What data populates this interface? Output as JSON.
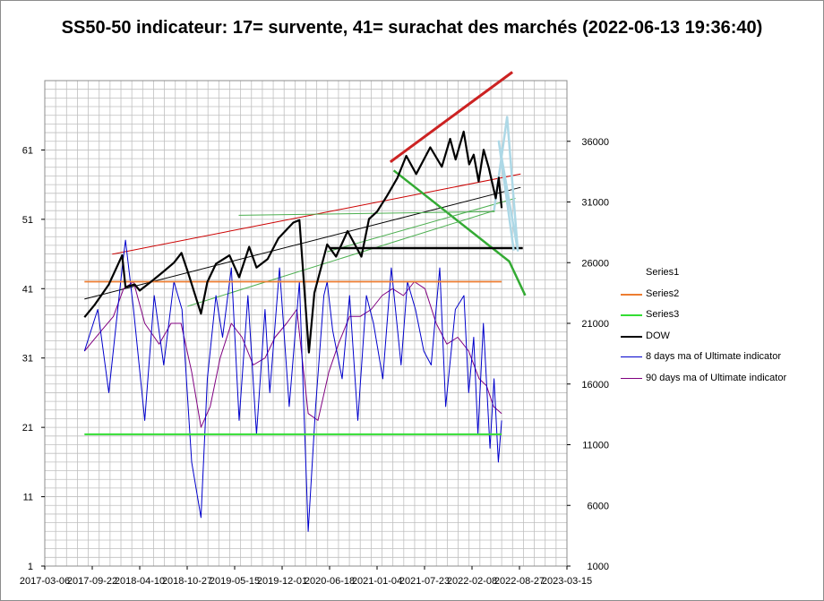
{
  "chart_data": {
    "type": "line",
    "title": "SS50-50 indicateur: 17= survente, 41= surachat des marchés (2022-06-13 19:36:40)",
    "x_ticks": [
      "2017-03-06",
      "2017-09-22",
      "2018-04-10",
      "2018-10-27",
      "2019-05-15",
      "2019-12-01",
      "2020-06-18",
      "2021-01-04",
      "2021-07-23",
      "2022-02-08",
      "2022-08-27",
      "2023-03-15"
    ],
    "y_left_ticks": [
      "1",
      "11",
      "21",
      "31",
      "41",
      "51",
      "61"
    ],
    "y_right_ticks": [
      "1000",
      "6000",
      "11000",
      "16000",
      "21000",
      "26000",
      "31000",
      "36000"
    ],
    "y_left_range": [
      1,
      71
    ],
    "y_right_range": [
      1000,
      41000
    ],
    "x_range": [
      "2017-03-06",
      "2023-03-15"
    ],
    "grid": true,
    "legend_position": "right",
    "series": [
      {
        "name": "Series1",
        "color": "#ffffff",
        "axis": "left",
        "x": [],
        "values": []
      },
      {
        "name": "Series2",
        "color": "#ed7d31",
        "axis": "left",
        "x": [
          "2017-08-20",
          "2022-06-13"
        ],
        "values": [
          42,
          42
        ]
      },
      {
        "name": "Series3",
        "color": "#33dd33",
        "axis": "left",
        "x": [
          "2017-08-20",
          "2022-06-13"
        ],
        "values": [
          20,
          20
        ]
      },
      {
        "name": "DOW",
        "color": "#000000",
        "axis": "right",
        "x": [
          "2017-08-20",
          "2017-10-01",
          "2017-12-01",
          "2018-01-26",
          "2018-02-09",
          "2018-03-20",
          "2018-04-10",
          "2018-06-01",
          "2018-07-15",
          "2018-09-01",
          "2018-10-03",
          "2018-11-01",
          "2018-12-24",
          "2019-01-20",
          "2019-02-25",
          "2019-04-23",
          "2019-06-03",
          "2019-07-15",
          "2019-08-15",
          "2019-10-01",
          "2019-11-15",
          "2020-01-17",
          "2020-02-12",
          "2020-03-23",
          "2020-04-15",
          "2020-06-08",
          "2020-07-15",
          "2020-09-02",
          "2020-10-30",
          "2020-12-01",
          "2021-01-04",
          "2021-02-15",
          "2021-03-31",
          "2021-05-07",
          "2021-06-18",
          "2021-08-16",
          "2021-10-04",
          "2021-11-08",
          "2021-12-01",
          "2022-01-04",
          "2022-01-27",
          "2022-02-15",
          "2022-03-08",
          "2022-03-29",
          "2022-04-20",
          "2022-05-19",
          "2022-06-01",
          "2022-06-13"
        ],
        "values": [
          21500,
          22500,
          24200,
          26600,
          24000,
          24200,
          23700,
          24500,
          25200,
          26000,
          26800,
          25100,
          21800,
          24400,
          25900,
          26600,
          24800,
          27300,
          25600,
          26300,
          28000,
          29300,
          29500,
          18600,
          23500,
          27500,
          26500,
          28600,
          26500,
          29600,
          30200,
          31500,
          33000,
          34800,
          33300,
          35500,
          33900,
          36200,
          34500,
          36800,
          34100,
          34900,
          32700,
          35300,
          33800,
          31300,
          33000,
          30500
        ]
      },
      {
        "name": "8 days ma of Ultimate indicator",
        "color": "#0000cc",
        "axis": "left",
        "x": [
          "2017-08-20",
          "2017-10-15",
          "2017-12-01",
          "2018-01-26",
          "2018-02-09",
          "2018-03-15",
          "2018-05-01",
          "2018-06-10",
          "2018-07-20",
          "2018-09-01",
          "2018-10-05",
          "2018-11-15",
          "2018-12-24",
          "2019-01-20",
          "2019-02-25",
          "2019-03-25",
          "2019-05-01",
          "2019-06-03",
          "2019-07-10",
          "2019-08-15",
          "2019-09-20",
          "2019-10-10",
          "2019-11-20",
          "2019-12-31",
          "2020-02-12",
          "2020-03-20",
          "2020-04-20",
          "2020-05-25",
          "2020-06-08",
          "2020-07-01",
          "2020-08-10",
          "2020-09-10",
          "2020-10-15",
          "2020-11-20",
          "2020-12-20",
          "2021-01-28",
          "2021-03-05",
          "2021-04-15",
          "2021-05-12",
          "2021-06-15",
          "2021-07-20",
          "2021-08-20",
          "2021-09-25",
          "2021-10-20",
          "2021-11-30",
          "2022-01-05",
          "2022-01-25",
          "2022-02-15",
          "2022-03-05",
          "2022-03-28",
          "2022-04-25",
          "2022-05-12",
          "2022-05-30",
          "2022-06-13"
        ],
        "values": [
          32,
          38,
          26,
          44,
          48,
          38,
          22,
          40,
          30,
          42,
          38,
          16,
          8,
          28,
          40,
          34,
          44,
          22,
          40,
          20,
          38,
          26,
          44,
          24,
          42,
          6,
          24,
          40,
          42,
          35,
          28,
          40,
          22,
          40,
          36,
          28,
          44,
          30,
          42,
          38,
          32,
          30,
          44,
          24,
          38,
          40,
          26,
          34,
          20,
          36,
          18,
          28,
          16,
          22
        ]
      },
      {
        "name": "90 days ma of Ultimate indicator",
        "color": "#800080",
        "axis": "left",
        "x": [
          "2017-08-20",
          "2017-11-01",
          "2017-12-20",
          "2018-02-01",
          "2018-03-15",
          "2018-05-01",
          "2018-07-01",
          "2018-08-20",
          "2018-10-01",
          "2018-11-15",
          "2018-12-24",
          "2019-02-01",
          "2019-03-15",
          "2019-05-01",
          "2019-06-15",
          "2019-08-01",
          "2019-09-20",
          "2019-11-01",
          "2019-12-20",
          "2020-02-01",
          "2020-03-20",
          "2020-04-30",
          "2020-06-15",
          "2020-07-25",
          "2020-09-10",
          "2020-10-25",
          "2020-12-10",
          "2021-01-25",
          "2021-03-10",
          "2021-04-25",
          "2021-06-10",
          "2021-07-25",
          "2021-09-10",
          "2021-10-25",
          "2021-12-10",
          "2022-01-25",
          "2022-03-10",
          "2022-04-10",
          "2022-05-10",
          "2022-06-13"
        ],
        "values": [
          32,
          35,
          37,
          41,
          42,
          36,
          33,
          36,
          36,
          29,
          21,
          24,
          31,
          36,
          34,
          30,
          31,
          34,
          36,
          38,
          23,
          22,
          29,
          33,
          37,
          37,
          38,
          40,
          41,
          40,
          42,
          41,
          36,
          33,
          34,
          32,
          28,
          27,
          24,
          23
        ]
      }
    ],
    "annotation_lines": [
      {
        "color": "#cc0000",
        "axis": "right",
        "x": [
          "2017-12-15",
          "2022-09-01"
        ],
        "values": [
          26700,
          33300
        ]
      },
      {
        "color": "#000000",
        "axis": "right",
        "x": [
          "2017-08-20",
          "2022-09-01"
        ],
        "values": [
          23000,
          32200
        ]
      },
      {
        "color": "#cc2222",
        "axis": "right",
        "x": [
          "2021-03-01",
          "2022-07-28"
        ],
        "values": [
          34300,
          41700
        ]
      },
      {
        "color": "#33aa33",
        "axis": "right",
        "x": [
          "2021-03-15",
          "2022-07-15",
          "2022-09-20"
        ],
        "values": [
          33600,
          26100,
          23300
        ]
      },
      {
        "color": "#4caf50",
        "axis": "right",
        "x": [
          "2020-06-08",
          "2022-08-10"
        ],
        "values": [
          26900,
          31300
        ]
      },
      {
        "color": "#4caf50",
        "axis": "right",
        "x": [
          "2018-10-28",
          "2022-05-15"
        ],
        "values": [
          22400,
          30300
        ]
      },
      {
        "color": "#4caf50",
        "axis": "right",
        "x": [
          "2019-06-01",
          "2022-05-15"
        ],
        "values": [
          29900,
          30200
        ]
      },
      {
        "color": "#000000",
        "axis": "right",
        "x": [
          "2020-06-18",
          "2022-09-10"
        ],
        "values": [
          27200,
          27200
        ]
      },
      {
        "color": "#add8e6",
        "axis": "right",
        "x": [
          "2022-05-12",
          "2022-07-06",
          "2022-08-20",
          "2022-06-01",
          "2022-08-03"
        ],
        "values": [
          30300,
          38000,
          27000,
          36000,
          27000
        ]
      }
    ]
  }
}
